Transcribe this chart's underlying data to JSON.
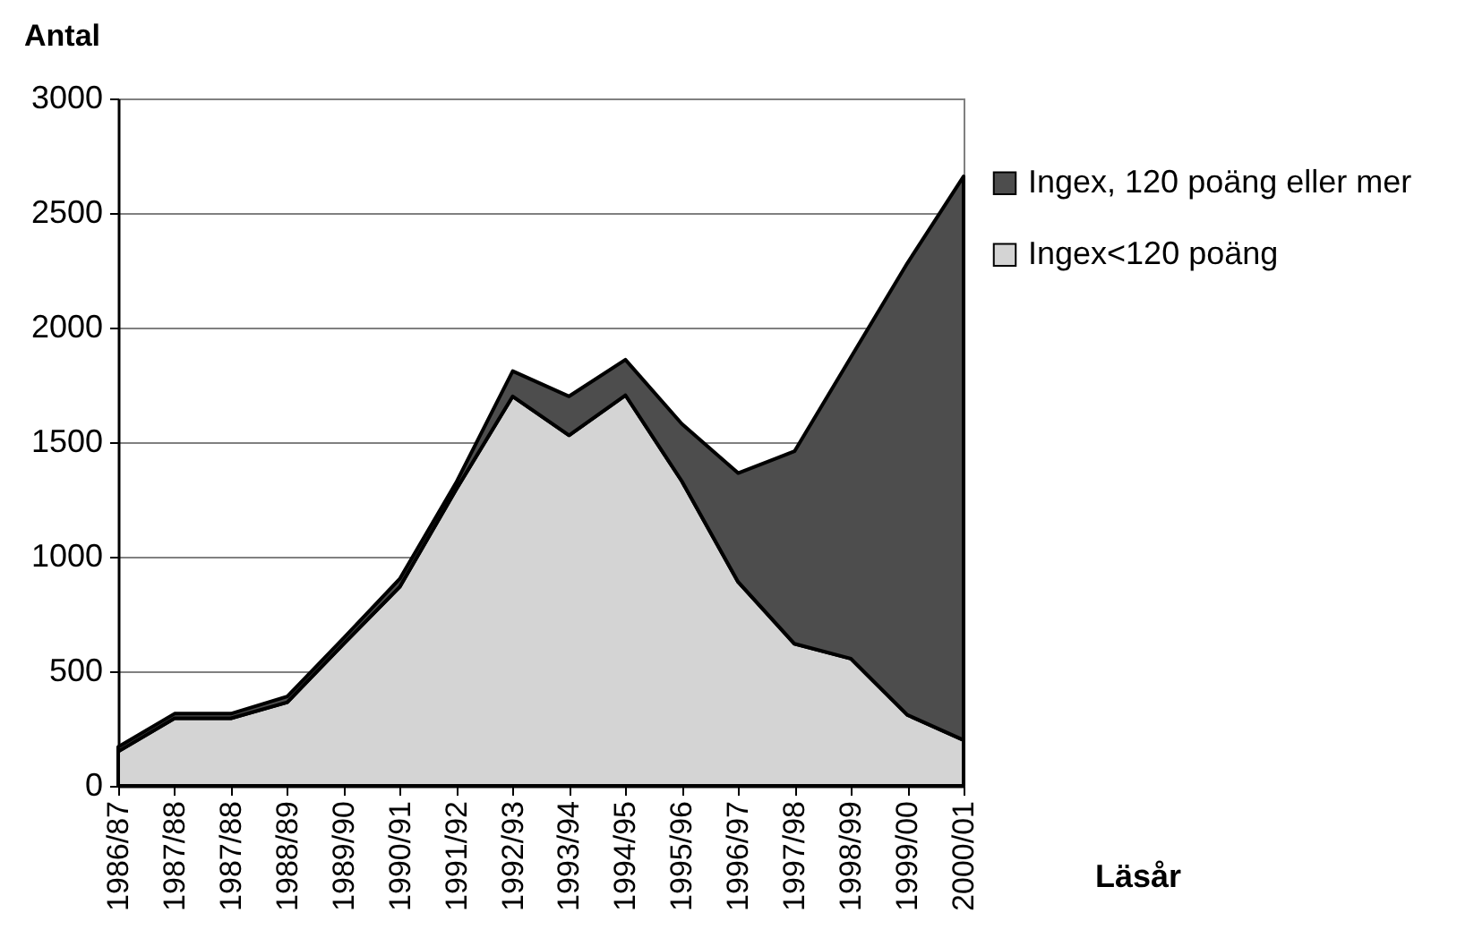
{
  "chart_data": {
    "type": "area",
    "stacked": true,
    "ylabel": "Antal",
    "xlabel": "Läsår",
    "categories": [
      "1986/87",
      "1987/88",
      "1987/88",
      "1988/89",
      "1989/90",
      "1990/91",
      "1991/92",
      "1992/93",
      "1993/94",
      "1994/95",
      "1995/96",
      "1996/97",
      "1997/98",
      "1998/99",
      "1999/00",
      "2000/01"
    ],
    "series": [
      {
        "name": "Ingex<120 poäng",
        "color": "#d4d4d4",
        "values": [
          150,
          295,
          295,
          365,
          620,
          870,
          1295,
          1700,
          1530,
          1705,
          1330,
          890,
          620,
          555,
          310,
          200
        ]
      },
      {
        "name": "Ingex, 120 poäng eller mer",
        "color": "#4d4d4d",
        "values": [
          20,
          20,
          20,
          25,
          25,
          35,
          30,
          110,
          170,
          155,
          250,
          475,
          840,
          1315,
          1970,
          2460
        ]
      }
    ],
    "ylim": [
      0,
      3000
    ],
    "yticks": [
      0,
      500,
      1000,
      1500,
      2000,
      2500,
      3000
    ],
    "grid": "y",
    "legend": "right"
  }
}
